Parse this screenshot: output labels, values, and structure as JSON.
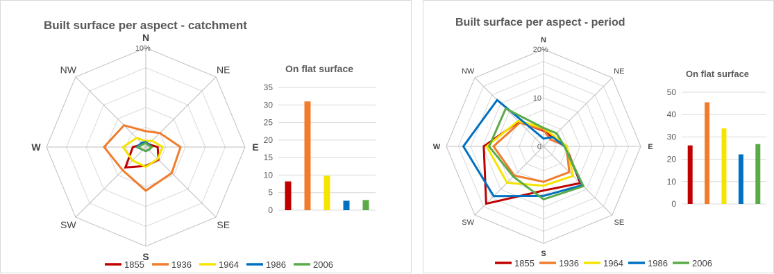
{
  "colors": {
    "1855": "#c00000",
    "1936": "#f07c2c",
    "1964": "#f5e400",
    "1986": "#0070c0",
    "2006": "#5aaa46"
  },
  "chart_data": [
    {
      "type": "radar",
      "title": "Built surface per aspect - catchment",
      "axes": [
        "N",
        "NE",
        "E",
        "SE",
        "S",
        "SW",
        "W",
        "NW"
      ],
      "unit_label": "%",
      "rmax": 10,
      "tick_labels": [
        "10"
      ],
      "grid": true,
      "series": [
        {
          "name": "1855",
          "values": [
            0.5,
            0.4,
            1.2,
            1.8,
            1.9,
            2.9,
            1.3,
            0.4
          ]
        },
        {
          "name": "1936",
          "values": [
            1.6,
            2.0,
            3.5,
            3.7,
            4.4,
            3.3,
            4.2,
            3.1
          ]
        },
        {
          "name": "1964",
          "values": [
            0.6,
            0.9,
            1.7,
            1.7,
            2.0,
            1.9,
            2.3,
            1.3
          ]
        },
        {
          "name": "1986",
          "values": [
            0.5,
            0.4,
            0.6,
            0.4,
            0.4,
            0.4,
            0.9,
            0.6
          ]
        },
        {
          "name": "2006",
          "values": [
            0.4,
            0.3,
            0.6,
            0.4,
            0.4,
            0.4,
            0.8,
            0.4
          ]
        }
      ],
      "legend": "bottom"
    },
    {
      "type": "bar",
      "title": "On flat surface",
      "categories": [
        "1855",
        "1936",
        "1964",
        "1986",
        "2006"
      ],
      "values": [
        8.2,
        31,
        9.8,
        2.7,
        2.9
      ],
      "ylim": [
        0,
        35
      ],
      "yticks": [
        0,
        5,
        10,
        15,
        20,
        25,
        30,
        35
      ],
      "grid": true
    },
    {
      "type": "radar",
      "title": "Built surface per aspect - period",
      "axes": [
        "N",
        "NE",
        "E",
        "SE",
        "S",
        "SW",
        "W",
        "NW"
      ],
      "unit_label": "%",
      "rmax": 20,
      "tick_labels": [
        "0",
        "10",
        "20"
      ],
      "grid": true,
      "series": [
        {
          "name": "1855",
          "values": [
            3.2,
            2.7,
            4.6,
            10.7,
            9.1,
            16.7,
            12.3,
            7.2
          ]
        },
        {
          "name": "1936",
          "values": [
            3.4,
            2.0,
            4.7,
            7.5,
            7.3,
            8.5,
            10.3,
            6.9
          ]
        },
        {
          "name": "1964",
          "values": [
            3.8,
            3.0,
            4.8,
            8.6,
            8.1,
            10.6,
            11.7,
            7.4
          ]
        },
        {
          "name": "1986",
          "values": [
            1.6,
            2.7,
            4.3,
            11.3,
            10.2,
            14.5,
            16.5,
            13.5
          ]
        },
        {
          "name": "2006",
          "values": [
            3.8,
            3.8,
            4.3,
            11.6,
            10.9,
            8.8,
            11.2,
            11.0
          ]
        }
      ],
      "legend": "bottom"
    },
    {
      "type": "bar",
      "title": "On flat surface",
      "categories": [
        "1855",
        "1936",
        "1964",
        "1986",
        "2006"
      ],
      "values": [
        26.2,
        45.5,
        33.8,
        22.2,
        26.8
      ],
      "ylim": [
        0,
        50
      ],
      "yticks": [
        0,
        10,
        20,
        30,
        40,
        50
      ],
      "grid": true
    }
  ]
}
